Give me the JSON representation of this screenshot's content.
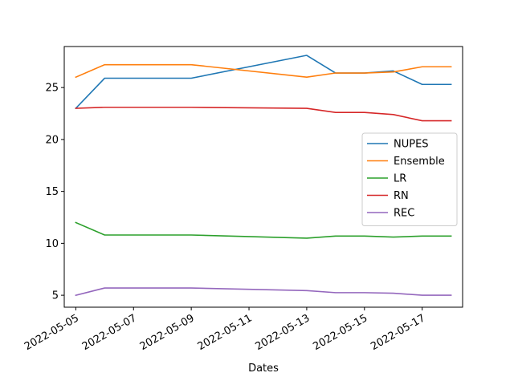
{
  "chart_data": {
    "type": "line",
    "title": "",
    "xlabel": "Dates",
    "ylabel": "",
    "x": [
      "2022-05-05",
      "2022-05-06",
      "2022-05-09",
      "2022-05-13",
      "2022-05-14",
      "2022-05-15",
      "2022-05-16",
      "2022-05-17",
      "2022-05-18"
    ],
    "xlim": [
      "2022-05-04T14:24",
      "2022-05-18T09:36"
    ],
    "ylim": [
      3.85,
      28.95
    ],
    "xticks": [
      "2022-05-05",
      "2022-05-07",
      "2022-05-09",
      "2022-05-11",
      "2022-05-13",
      "2022-05-15",
      "2022-05-17"
    ],
    "yticks": [
      5,
      10,
      15,
      20,
      25
    ],
    "grid": false,
    "legend_position": "center-right",
    "series": [
      {
        "name": "NUPES",
        "color": "#1f77b4",
        "values": [
          23.0,
          25.9,
          25.9,
          28.1,
          26.4,
          26.4,
          26.6,
          25.3,
          25.3
        ]
      },
      {
        "name": "Ensemble",
        "color": "#ff7f0e",
        "values": [
          26.0,
          27.2,
          27.2,
          26.0,
          26.4,
          26.4,
          26.5,
          27.0,
          27.0
        ]
      },
      {
        "name": "LR",
        "color": "#2ca02c",
        "values": [
          12.0,
          10.8,
          10.8,
          10.5,
          10.7,
          10.7,
          10.6,
          10.7,
          10.7
        ]
      },
      {
        "name": "RN",
        "color": "#d62728",
        "values": [
          23.0,
          23.1,
          23.1,
          23.0,
          22.6,
          22.6,
          22.4,
          21.8,
          21.8
        ]
      },
      {
        "name": "REC",
        "color": "#9467bd",
        "values": [
          5.0,
          5.7,
          5.7,
          5.45,
          5.25,
          5.25,
          5.2,
          5.0,
          5.0
        ]
      }
    ]
  }
}
